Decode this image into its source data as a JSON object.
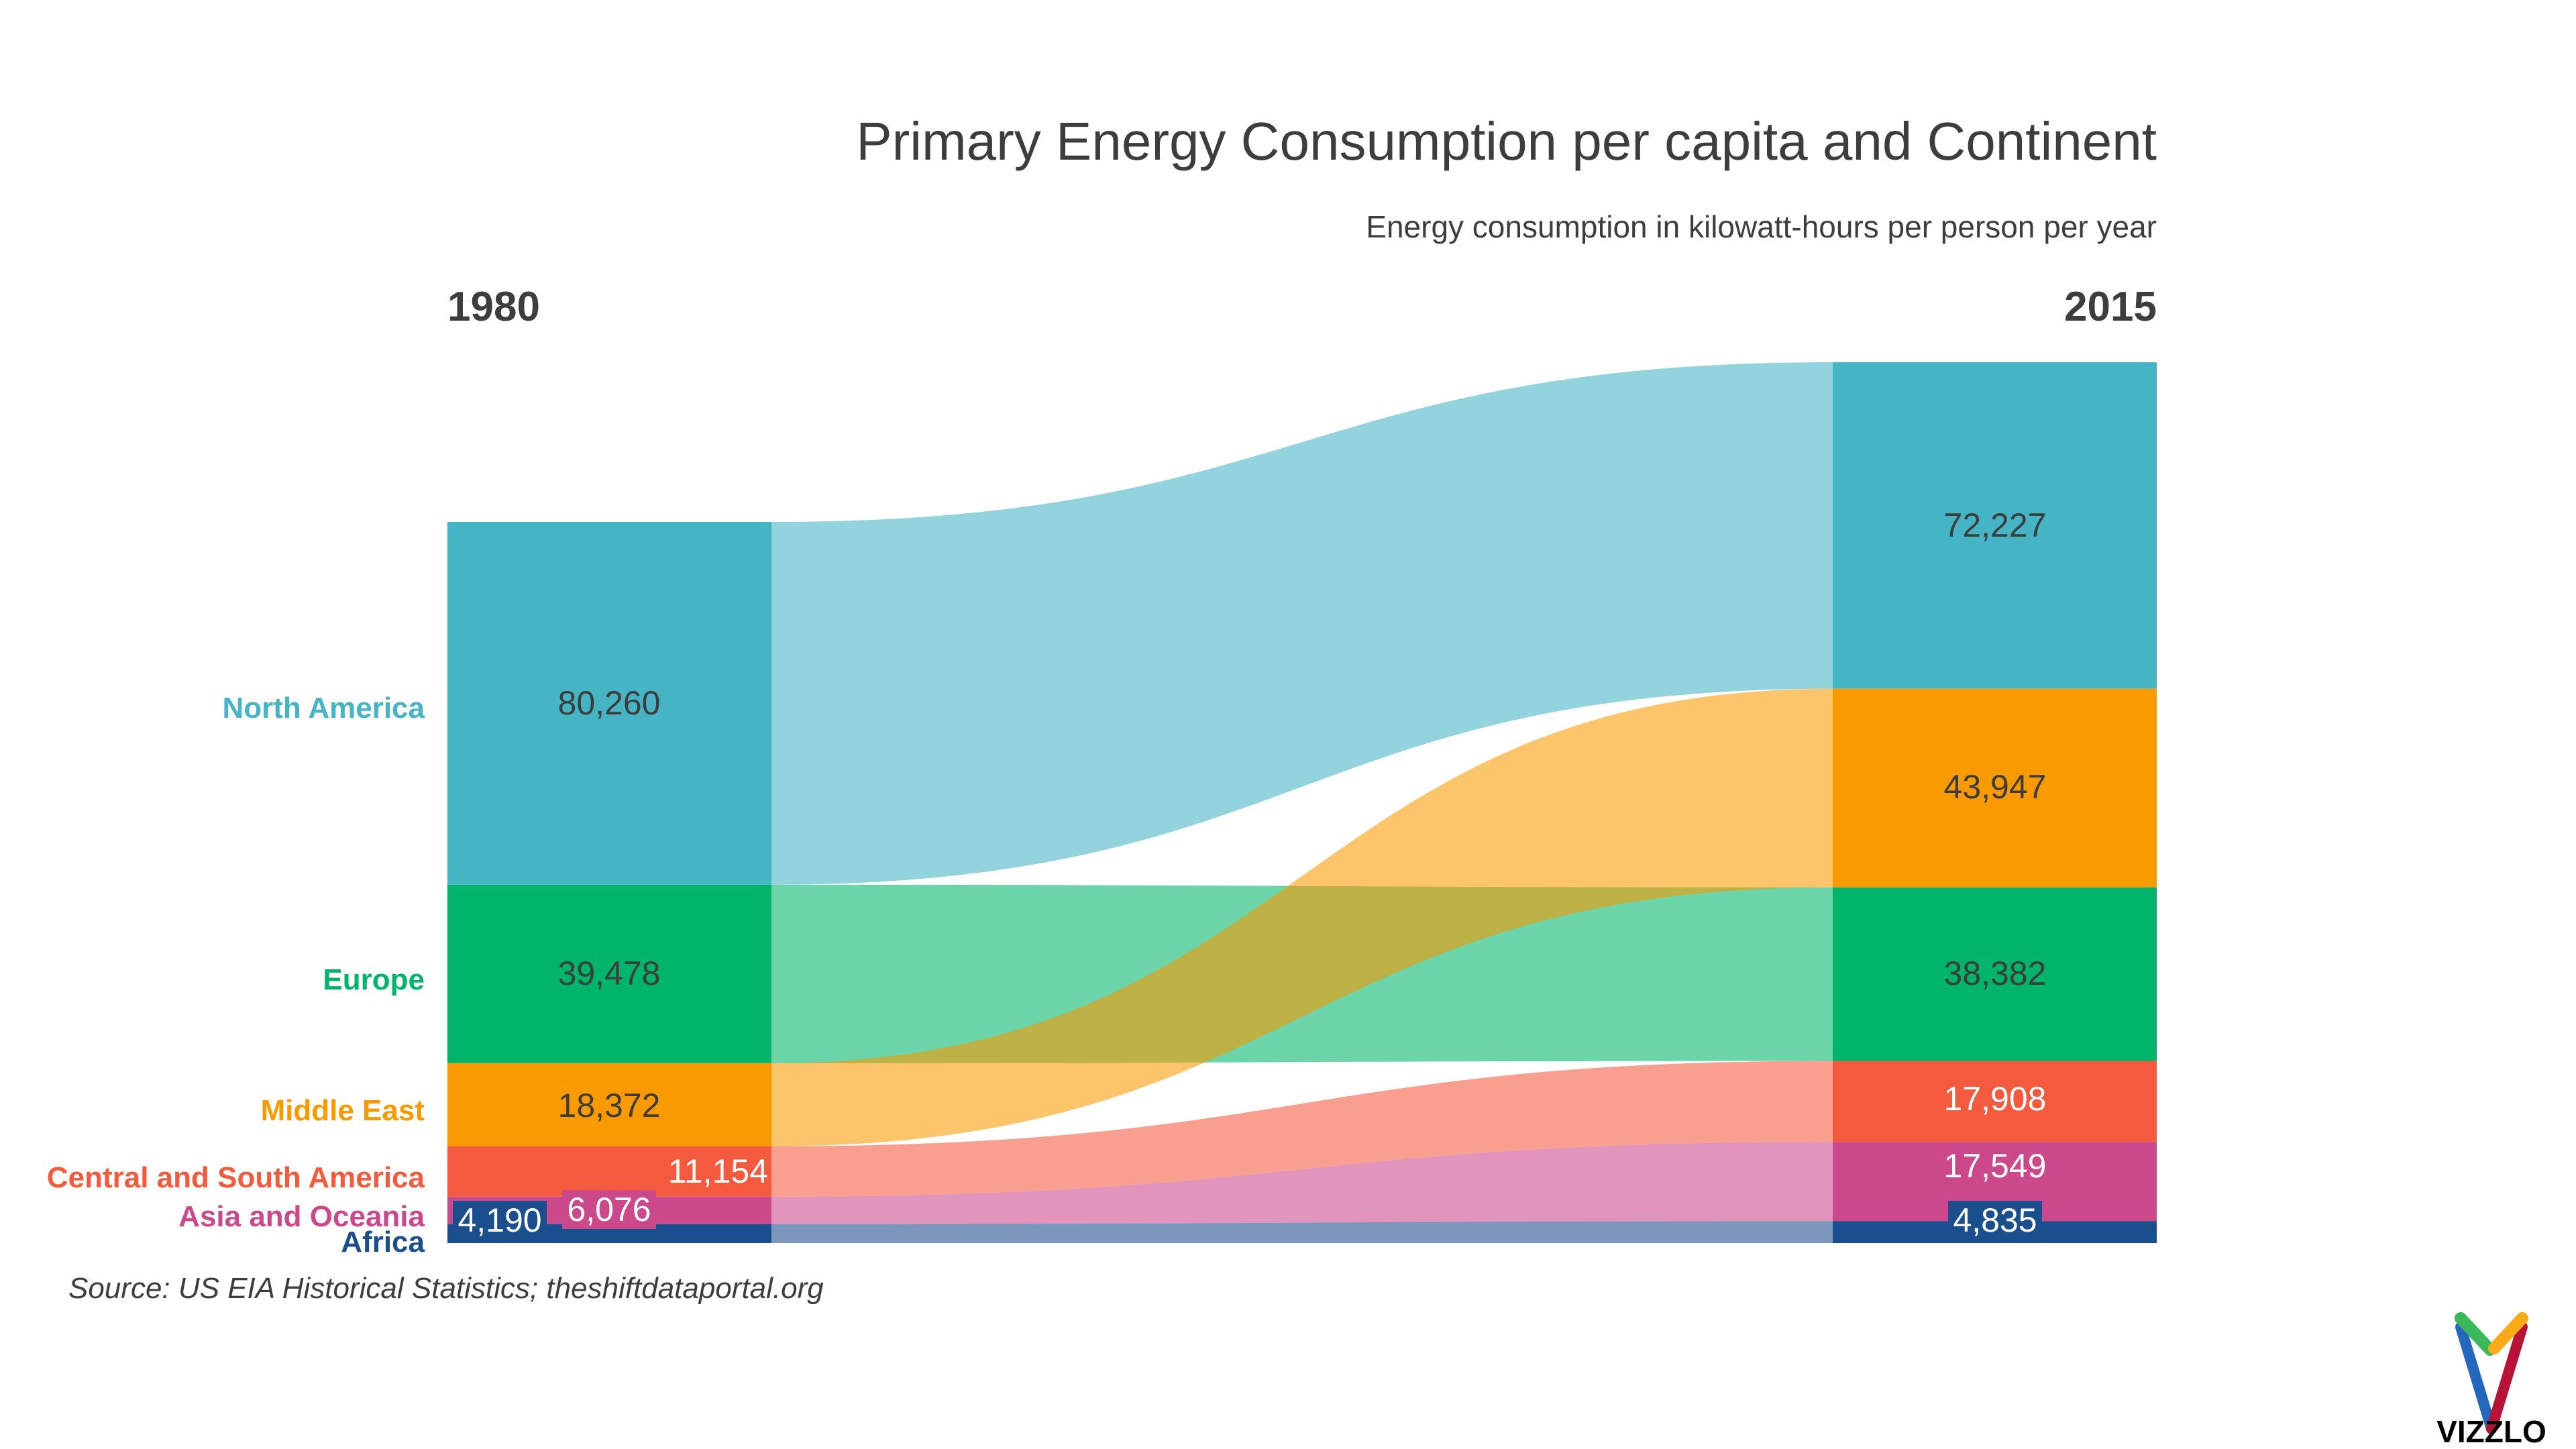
{
  "chart_data": {
    "type": "sankey",
    "title": "Primary Energy Consumption per capita and Continent",
    "subtitle": "Energy consumption in kilowatt-hours per person per year",
    "source": "Source: US EIA Historical Statistics; theshiftdataportal.org",
    "columns": [
      "1980",
      "2015"
    ],
    "series": [
      {
        "name": "North America",
        "color": "#45b4c4",
        "values": [
          80260,
          72227
        ],
        "labels": [
          "80,260",
          "72,227"
        ]
      },
      {
        "name": "Europe",
        "color": "#00b56a",
        "values": [
          39478,
          38382
        ],
        "labels": [
          "39,478",
          "38,382"
        ]
      },
      {
        "name": "Middle East",
        "color": "#f99a00",
        "values": [
          18372,
          43947
        ],
        "labels": [
          "18,372",
          "43,947"
        ]
      },
      {
        "name": "Central and South America",
        "color": "#f45a3e",
        "values": [
          11154,
          17908
        ],
        "labels": [
          "11,154",
          "17,908"
        ]
      },
      {
        "name": "Asia and Oceania",
        "color": "#cb488b",
        "values": [
          6076,
          17549
        ],
        "labels": [
          "6,076",
          "17,549"
        ]
      },
      {
        "name": "Africa",
        "color": "#1b4e8c",
        "values": [
          4190,
          4835
        ],
        "labels": [
          "4,190",
          "4,835"
        ]
      }
    ],
    "order_2015": [
      "North America",
      "Middle East",
      "Europe",
      "Central and South America",
      "Asia and Oceania",
      "Africa"
    ]
  },
  "logo": {
    "text": "VIZZLO"
  }
}
